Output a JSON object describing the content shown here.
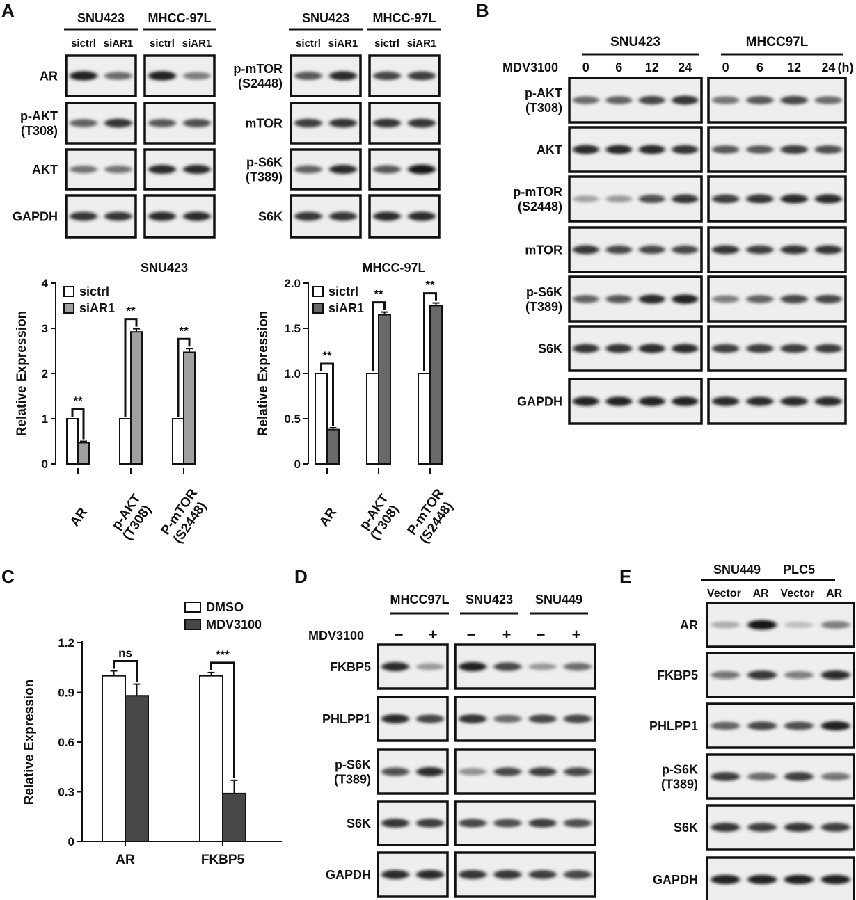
{
  "panel_letters": {
    "a": "A",
    "b": "B",
    "c": "C",
    "d": "D",
    "e": "E"
  },
  "panelA": {
    "blot_left": {
      "groups": [
        {
          "name": "SNU423",
          "lanes": [
            "sictrl",
            "siAR1"
          ]
        },
        {
          "name": "MHCC-97L",
          "lanes": [
            "sictrl",
            "siAR1"
          ]
        }
      ],
      "rows": [
        {
          "label": [
            "AR"
          ],
          "bands": [
            [
              0.9,
              0.5
            ],
            [
              0.9,
              0.4
            ]
          ]
        },
        {
          "label": [
            "p-AKT",
            "(T308)"
          ],
          "bands": [
            [
              0.55,
              0.8
            ],
            [
              0.6,
              0.65
            ]
          ]
        },
        {
          "label": [
            "AKT"
          ],
          "bands": [
            [
              0.45,
              0.45
            ],
            [
              0.85,
              0.85
            ]
          ]
        },
        {
          "label": [
            "GAPDH"
          ],
          "bands": [
            [
              0.8,
              0.8
            ],
            [
              0.85,
              0.85
            ]
          ]
        }
      ]
    },
    "blot_right": {
      "groups": [
        {
          "name": "SNU423",
          "lanes": [
            "sictrl",
            "siAR1"
          ]
        },
        {
          "name": "MHCC-97L",
          "lanes": [
            "sictrl",
            "siAR1"
          ]
        }
      ],
      "rows": [
        {
          "label": [
            "p-mTOR",
            "(S2448)"
          ],
          "bands": [
            [
              0.6,
              0.85
            ],
            [
              0.7,
              0.75
            ]
          ]
        },
        {
          "label": [
            "mTOR"
          ],
          "bands": [
            [
              0.75,
              0.8
            ],
            [
              0.8,
              0.8
            ]
          ]
        },
        {
          "label": [
            "p-S6K",
            "(T389)"
          ],
          "bands": [
            [
              0.55,
              0.85
            ],
            [
              0.6,
              0.95
            ]
          ]
        },
        {
          "label": [
            "S6K"
          ],
          "bands": [
            [
              0.8,
              0.8
            ],
            [
              0.85,
              0.85
            ]
          ]
        }
      ]
    }
  },
  "panelB": {
    "groups": [
      {
        "name": "SNU423"
      },
      {
        "name": "MHCC97L"
      }
    ],
    "treatment_label": "MDV3100",
    "timepoints": [
      "0",
      "6",
      "12",
      "24"
    ],
    "unit": "(h)",
    "rows": [
      {
        "label": [
          "p-AKT",
          "(T308)"
        ],
        "bands": [
          [
            0.5,
            0.55,
            0.7,
            0.8
          ],
          [
            0.45,
            0.6,
            0.7,
            0.5
          ]
        ]
      },
      {
        "label": [
          "AKT"
        ],
        "bands": [
          [
            0.85,
            0.85,
            0.85,
            0.8
          ],
          [
            0.6,
            0.6,
            0.75,
            0.65
          ]
        ]
      },
      {
        "label": [
          "p-mTOR",
          "(S2448)"
        ],
        "bands": [
          [
            0.2,
            0.25,
            0.65,
            0.8
          ],
          [
            0.75,
            0.8,
            0.85,
            0.85
          ]
        ]
      },
      {
        "label": [
          "mTOR"
        ],
        "bands": [
          [
            0.8,
            0.7,
            0.7,
            0.7
          ],
          [
            0.8,
            0.75,
            0.8,
            0.8
          ]
        ]
      },
      {
        "label": [
          "p-S6K",
          "(T389)"
        ],
        "bands": [
          [
            0.55,
            0.6,
            0.85,
            0.9
          ],
          [
            0.4,
            0.55,
            0.7,
            0.7
          ]
        ]
      },
      {
        "label": [
          "S6K"
        ],
        "bands": [
          [
            0.8,
            0.8,
            0.85,
            0.85
          ],
          [
            0.75,
            0.75,
            0.75,
            0.75
          ]
        ]
      },
      {
        "label": [
          "GAPDH"
        ],
        "bands": [
          [
            0.9,
            0.9,
            0.9,
            0.9
          ],
          [
            0.85,
            0.85,
            0.85,
            0.85
          ]
        ]
      }
    ]
  },
  "panelD": {
    "groups": [
      {
        "name": "MHCC97L"
      },
      {
        "name": "SNU423"
      },
      {
        "name": "SNU449"
      }
    ],
    "treatment_label": "MDV3100",
    "signs": [
      "−",
      "+"
    ],
    "rows": [
      {
        "label": [
          "FKBP5"
        ],
        "bands": [
          [
            0.85,
            0.25
          ],
          [
            0.9,
            0.7,
            0.25,
            0.5
          ]
        ]
      },
      {
        "label": [
          "PHLPP1"
        ],
        "bands": [
          [
            0.85,
            0.7
          ],
          [
            0.8,
            0.5,
            0.7,
            0.7
          ]
        ]
      },
      {
        "label": [
          "p-S6K",
          "(T389)"
        ],
        "bands": [
          [
            0.65,
            0.85
          ],
          [
            0.3,
            0.7,
            0.75,
            0.7
          ]
        ]
      },
      {
        "label": [
          "S6K"
        ],
        "bands": [
          [
            0.8,
            0.75
          ],
          [
            0.7,
            0.65,
            0.75,
            0.65
          ]
        ]
      },
      {
        "label": [
          "GAPDH"
        ],
        "bands": [
          [
            0.85,
            0.85
          ],
          [
            0.8,
            0.8,
            0.75,
            0.7
          ]
        ]
      }
    ]
  },
  "panelE": {
    "groups": [
      {
        "name": "SNU449",
        "lanes": [
          "Vector",
          "AR"
        ]
      },
      {
        "name": "PLC5",
        "lanes": [
          "Vector",
          "AR"
        ]
      }
    ],
    "rows": [
      {
        "label": [
          "AR"
        ],
        "bands": [
          [
            0.15,
            0.95,
            0.05,
            0.4
          ]
        ]
      },
      {
        "label": [
          "FKBP5"
        ],
        "bands": [
          [
            0.45,
            0.8,
            0.4,
            0.85
          ]
        ]
      },
      {
        "label": [
          "PHLPP1"
        ],
        "bands": [
          [
            0.55,
            0.7,
            0.65,
            0.9
          ]
        ]
      },
      {
        "label": [
          "p-S6K",
          "(T389)"
        ],
        "bands": [
          [
            0.75,
            0.5,
            0.75,
            0.45
          ]
        ]
      },
      {
        "label": [
          "S6K"
        ],
        "bands": [
          [
            0.8,
            0.75,
            0.8,
            0.75
          ]
        ]
      },
      {
        "label": [
          "GAPDH"
        ],
        "bands": [
          [
            0.9,
            0.9,
            0.9,
            0.9
          ]
        ]
      }
    ]
  },
  "chart_data": [
    {
      "type": "bar",
      "title": "SNU423",
      "ylabel": "Relative Expression",
      "ylim": [
        0,
        4
      ],
      "yticks": [
        "0",
        "1",
        "2",
        "3",
        "4"
      ],
      "categories": [
        [
          "AR"
        ],
        [
          "p-AKT",
          "(T308)"
        ],
        [
          "P-mTOR",
          "(S2448)"
        ]
      ],
      "series": [
        {
          "name": "sictrl",
          "values": [
            1.0,
            1.0,
            1.0
          ],
          "errors": [
            0,
            0,
            0
          ],
          "color": "#ffffff"
        },
        {
          "name": "siAR1",
          "values": [
            0.47,
            2.92,
            2.47
          ],
          "errors": [
            0.03,
            0.07,
            0.08
          ],
          "color": "#a0a0a0"
        }
      ],
      "significance": [
        "**",
        "**",
        "**"
      ],
      "legend_position": "top-left"
    },
    {
      "type": "bar",
      "title": "MHCC-97L",
      "ylabel": "Relative Expression",
      "ylim": [
        0,
        2.0
      ],
      "yticks": [
        "0",
        "0.5",
        "1.0",
        "1.5",
        "2.0"
      ],
      "categories": [
        [
          "AR"
        ],
        [
          "p-AKT",
          "(T308)"
        ],
        [
          "P-mTOR",
          "(S2448)"
        ]
      ],
      "series": [
        {
          "name": "sictrl",
          "values": [
            1.0,
            1.0,
            1.0
          ],
          "errors": [
            0,
            0,
            0
          ],
          "color": "#ffffff"
        },
        {
          "name": "siAR1",
          "values": [
            0.38,
            1.65,
            1.75
          ],
          "errors": [
            0.02,
            0.03,
            0.03
          ],
          "color": "#696969"
        }
      ],
      "significance": [
        "**",
        "**",
        "**"
      ],
      "legend_position": "top-left"
    },
    {
      "type": "bar",
      "title": "",
      "ylabel": "Relative Expression",
      "ylim": [
        0,
        1.2
      ],
      "yticks": [
        "0",
        "0.3",
        "0.6",
        "0.9",
        "1.2"
      ],
      "categories": [
        [
          "AR"
        ],
        [
          "FKBP5"
        ]
      ],
      "series": [
        {
          "name": "DMSO",
          "values": [
            1.0,
            1.0
          ],
          "errors": [
            0.03,
            0.02
          ],
          "color": "#ffffff"
        },
        {
          "name": "MDV3100",
          "values": [
            0.88,
            0.29
          ],
          "errors": [
            0.07,
            0.08
          ],
          "color": "#474747"
        }
      ],
      "significance": [
        "ns",
        "***"
      ],
      "legend_position": "top-right"
    }
  ]
}
